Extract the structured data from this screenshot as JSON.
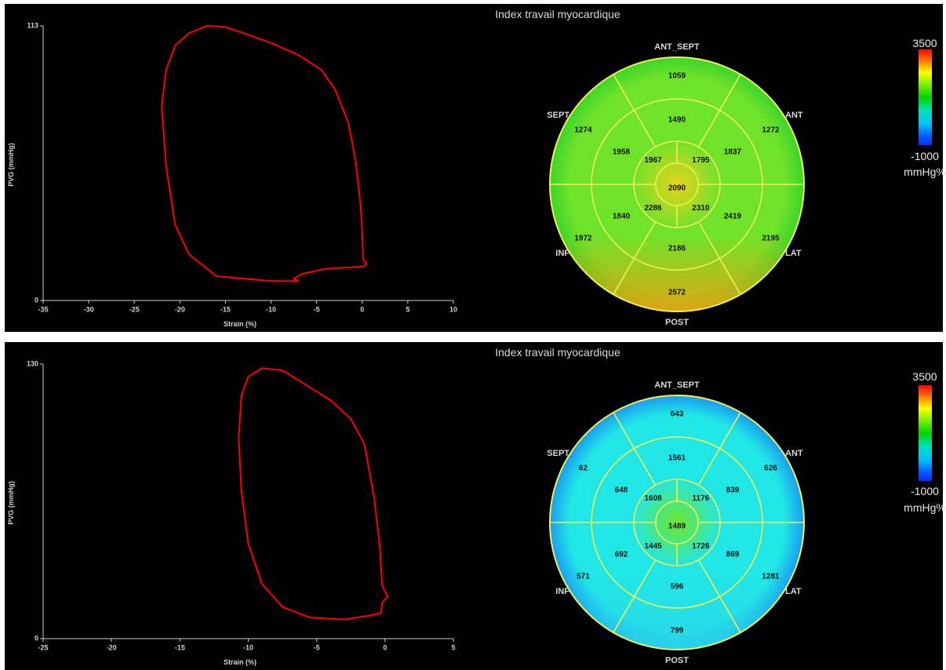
{
  "panels": [
    {
      "title": "Index travail myocardique",
      "colorbar": {
        "max": "3500",
        "min": "-1000",
        "unit": "mmHg%"
      },
      "loop": {
        "ylabel": "PVG (mmHg)",
        "xlabel": "Strain (%)",
        "ytick_top": "113",
        "ytick_bottom": "0",
        "xlim": [
          -35,
          10
        ],
        "ylim": [
          0,
          113
        ],
        "xticks": [
          "-35",
          "-30",
          "-25",
          "-20",
          "-15",
          "-10",
          "-5",
          "0",
          "5",
          "10"
        ],
        "points": [
          [
            -7,
            8
          ],
          [
            -10,
            8
          ],
          [
            -16,
            10
          ],
          [
            -19,
            19
          ],
          [
            -20.5,
            31
          ],
          [
            -21.5,
            55
          ],
          [
            -22,
            80
          ],
          [
            -21.5,
            95
          ],
          [
            -20.5,
            105
          ],
          [
            -19,
            110
          ],
          [
            -17,
            113
          ],
          [
            -15,
            112.5
          ],
          [
            -13,
            110
          ],
          [
            -10,
            106
          ],
          [
            -7,
            101
          ],
          [
            -4.5,
            95
          ],
          [
            -3,
            87
          ],
          [
            -1.5,
            73
          ],
          [
            -0.7,
            57
          ],
          [
            -0.2,
            40
          ],
          [
            0,
            28
          ],
          [
            0.1,
            17
          ],
          [
            0.5,
            15
          ],
          [
            0.2,
            14
          ],
          [
            -4,
            13
          ],
          [
            -6.5,
            11
          ],
          [
            -7.5,
            9
          ],
          [
            -7,
            8
          ]
        ],
        "color": "#ff0000"
      },
      "bullseye": {
        "labels": {
          "top": "ANT_SEPT",
          "topright": "ANT",
          "right": "LAT",
          "bottom": "POST",
          "left": "INF",
          "topleft": "SEPT"
        },
        "outer": [
          "1059",
          "1272",
          "2195",
          "2572",
          "1972",
          "1274"
        ],
        "middle": [
          "1490",
          "1837",
          "2419",
          "2186",
          "1840",
          "1958"
        ],
        "inner": [
          "1795",
          "2310",
          "2286",
          "1967"
        ],
        "apex": "2090",
        "colors": {
          "base": "#6fe22a",
          "center": "#e6d21e",
          "bottom": "#f0a010",
          "edge": "#3ad62a"
        }
      }
    },
    {
      "title": "Index travail myocardique",
      "colorbar": {
        "max": "3500",
        "min": "-1000",
        "unit": "mmHg%"
      },
      "loop": {
        "ylabel": "PVG (mmHg)",
        "xlabel": "Strain (%)",
        "ytick_top": "130",
        "ytick_bottom": "0",
        "xlim": [
          -25,
          5
        ],
        "ylim": [
          0,
          130
        ],
        "xticks": [
          "-25",
          "-20",
          "-15",
          "-10",
          "-5",
          "0",
          "5"
        ],
        "points": [
          [
            -1,
            11
          ],
          [
            -3,
            9
          ],
          [
            -5.5,
            10
          ],
          [
            -7.5,
            15
          ],
          [
            -9,
            26
          ],
          [
            -10,
            45
          ],
          [
            -10.5,
            70
          ],
          [
            -10.7,
            95
          ],
          [
            -10.5,
            115
          ],
          [
            -10,
            124
          ],
          [
            -9,
            128
          ],
          [
            -7.5,
            127
          ],
          [
            -6,
            121
          ],
          [
            -4,
            113
          ],
          [
            -2.5,
            104
          ],
          [
            -1.5,
            92
          ],
          [
            -0.8,
            67
          ],
          [
            -0.4,
            45
          ],
          [
            -0.2,
            25
          ],
          [
            0.2,
            20
          ],
          [
            -0.2,
            17
          ],
          [
            -0.3,
            12
          ],
          [
            -1,
            11
          ]
        ],
        "color": "#ff0000"
      },
      "bullseye": {
        "labels": {
          "top": "ANT_SEPT",
          "topright": "ANT",
          "right": "LAT",
          "bottom": "POST",
          "left": "INF",
          "topleft": "SEPT"
        },
        "outer": [
          "643",
          "626",
          "1281",
          "799",
          "571",
          "62"
        ],
        "middle": [
          "1561",
          "839",
          "869",
          "596",
          "692",
          "648"
        ],
        "inner": [
          "1176",
          "1726",
          "1445",
          "1608"
        ],
        "apex": "1489",
        "colors": {
          "base": "#21e6e6",
          "center": "#6ee62a",
          "bottom": "#2ad8e8",
          "edge": "#1a9cf0"
        }
      }
    }
  ]
}
